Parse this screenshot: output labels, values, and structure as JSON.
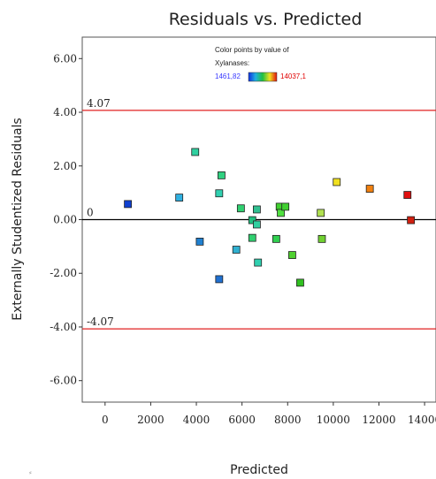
{
  "chart_data": {
    "type": "scatter",
    "title": "Residuals vs. Predicted",
    "xlabel": "Predicted",
    "ylabel": "Externally Studentized Residuals",
    "xlim": [
      -1000,
      14500
    ],
    "ylim": [
      -6.8,
      6.8
    ],
    "x_ticks": [
      0,
      2000,
      4000,
      6000,
      8000,
      10000,
      12000,
      14000
    ],
    "x_tick_labels": [
      "0",
      "2000",
      "4000",
      "6000",
      "8000",
      "10000",
      "12000",
      "14000"
    ],
    "y_ticks": [
      -6,
      -4,
      -2,
      0,
      2,
      4,
      6
    ],
    "y_tick_labels": [
      "-6.00",
      "-4.00",
      "-2.00",
      "0.00",
      "2.00",
      "4.00",
      "6.00"
    ],
    "reference_lines": [
      {
        "value": 4.07,
        "label": "4.07",
        "color": "#e02020"
      },
      {
        "value": 0,
        "label": "0",
        "color": "#000000"
      },
      {
        "value": -4.07,
        "label": "-4.07",
        "color": "#e02020"
      }
    ],
    "legend": {
      "title_line1": "Color points by value of",
      "title_line2": "Xylanases:",
      "min_label": "1461,82",
      "max_label": "14037,1",
      "min_value": 1461.82,
      "max_value": 14037.1
    },
    "points": [
      {
        "x": 1000,
        "y": 0.58,
        "color": "#1040d0"
      },
      {
        "x": 3250,
        "y": 0.82,
        "color": "#30b0e0"
      },
      {
        "x": 3950,
        "y": 2.52,
        "color": "#30d0a0"
      },
      {
        "x": 4150,
        "y": -0.82,
        "color": "#2080d0"
      },
      {
        "x": 5000,
        "y": -2.22,
        "color": "#2070d0"
      },
      {
        "x": 5000,
        "y": 0.98,
        "color": "#30d0b0"
      },
      {
        "x": 5100,
        "y": 1.65,
        "color": "#30d080"
      },
      {
        "x": 5750,
        "y": -1.12,
        "color": "#30b0d0"
      },
      {
        "x": 5950,
        "y": 0.42,
        "color": "#30d070"
      },
      {
        "x": 6450,
        "y": -0.02,
        "color": "#20c080"
      },
      {
        "x": 6450,
        "y": -0.68,
        "color": "#30d070"
      },
      {
        "x": 6650,
        "y": 0.38,
        "color": "#30c090"
      },
      {
        "x": 6650,
        "y": -0.18,
        "color": "#30d0a0"
      },
      {
        "x": 6700,
        "y": -1.6,
        "color": "#30d0b0"
      },
      {
        "x": 7500,
        "y": -0.72,
        "color": "#30d050"
      },
      {
        "x": 7650,
        "y": 0.48,
        "color": "#40d030"
      },
      {
        "x": 7700,
        "y": 0.25,
        "color": "#50e040"
      },
      {
        "x": 7900,
        "y": 0.48,
        "color": "#40d030"
      },
      {
        "x": 8200,
        "y": -1.32,
        "color": "#50d030"
      },
      {
        "x": 8550,
        "y": -2.35,
        "color": "#30c020"
      },
      {
        "x": 9450,
        "y": 0.25,
        "color": "#b0e050"
      },
      {
        "x": 9500,
        "y": -0.72,
        "color": "#70d030"
      },
      {
        "x": 10150,
        "y": 1.4,
        "color": "#f0e020"
      },
      {
        "x": 11600,
        "y": 1.15,
        "color": "#f08010"
      },
      {
        "x": 13250,
        "y": 0.92,
        "color": "#e01010"
      },
      {
        "x": 13400,
        "y": -0.02,
        "color": "#d02010"
      }
    ]
  }
}
